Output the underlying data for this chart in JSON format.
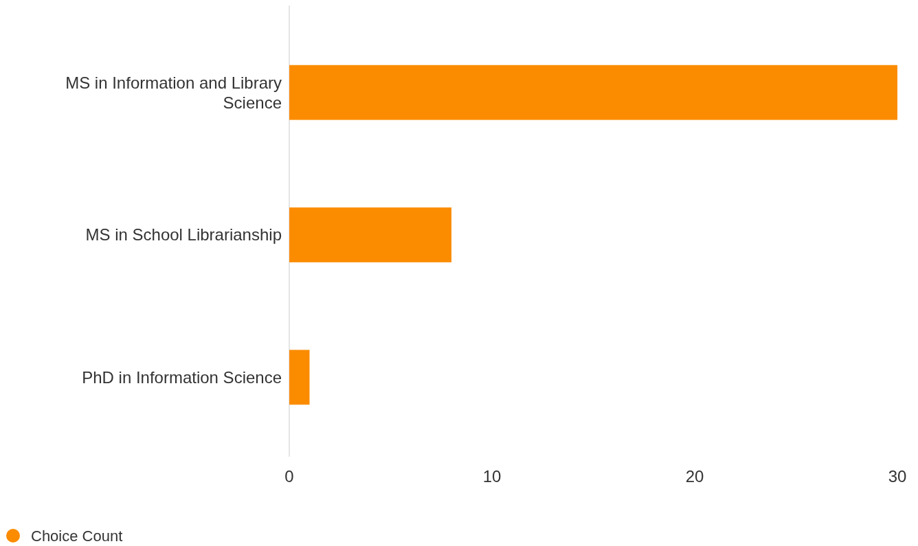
{
  "chart_data": {
    "type": "bar",
    "orientation": "horizontal",
    "categories": [
      "MS in Information and Library Science",
      "MS in School Librarianship",
      "PhD in Information Science"
    ],
    "series": [
      {
        "name": "Choice Count",
        "color": "#fb8c00",
        "values": [
          30,
          8,
          1
        ]
      }
    ],
    "xlim": [
      0,
      30
    ],
    "xticks": [
      0,
      10,
      20,
      30
    ],
    "grid": false,
    "legend": "bottom left"
  }
}
